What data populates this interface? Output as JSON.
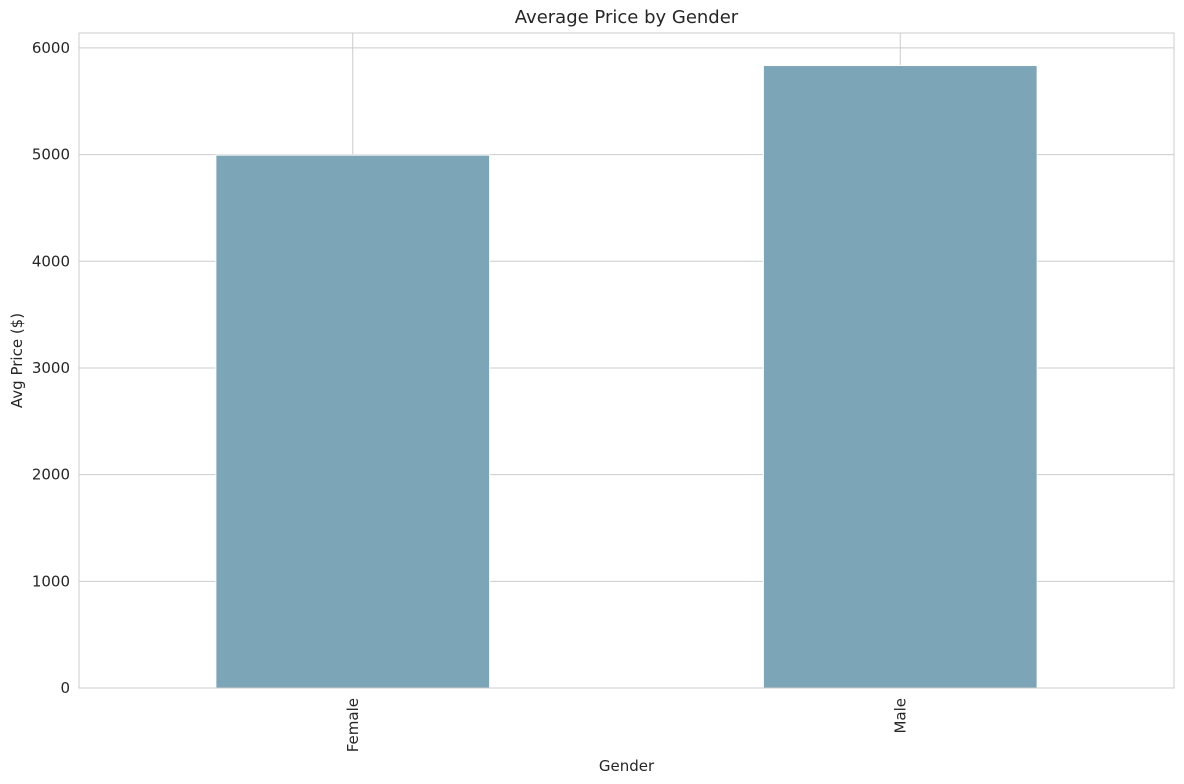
{
  "chart_data": {
    "type": "bar",
    "title": "Average Price by Gender",
    "xlabel": "Gender",
    "ylabel": "Avg Price ($)",
    "categories": [
      "Female",
      "Male"
    ],
    "values": [
      4995,
      5835
    ],
    "ylim": [
      0,
      6140
    ],
    "yticks": [
      "0",
      "1000",
      "2000",
      "3000",
      "4000",
      "5000",
      "6000"
    ],
    "grid": true,
    "bar_color": "#7ca5b8",
    "grid_color": "#cccccc",
    "x_tick_rotation": "vertical"
  }
}
